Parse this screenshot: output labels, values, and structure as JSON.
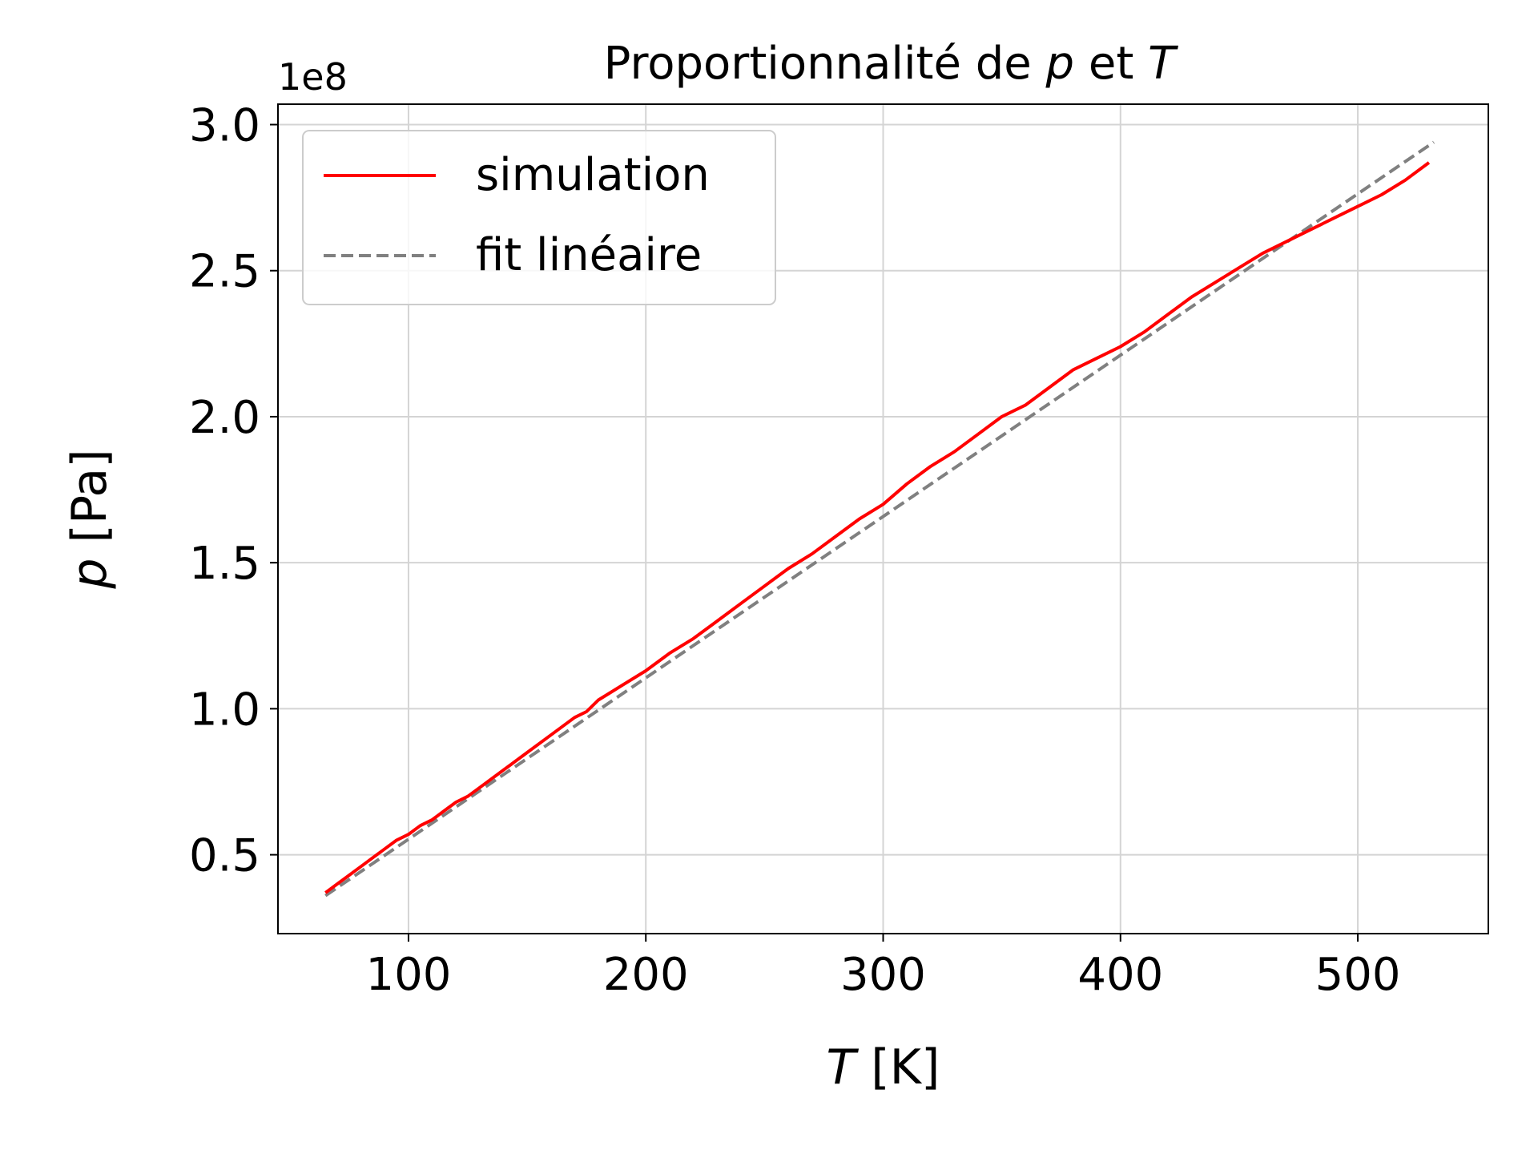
{
  "chart_data": {
    "type": "line",
    "title_parts": [
      {
        "text": "Proportionnalité de ",
        "italic": false
      },
      {
        "text": "p",
        "italic": true
      },
      {
        "text": " et ",
        "italic": false
      },
      {
        "text": "T",
        "italic": true
      }
    ],
    "xlabel_parts": [
      {
        "text": "T",
        "italic": true
      },
      {
        "text": " [K]",
        "italic": false
      }
    ],
    "ylabel_parts": [
      {
        "text": "p",
        "italic": true
      },
      {
        "text": " [Pa]",
        "italic": false
      }
    ],
    "y_offset_text": "1e8",
    "xlim": [
      45,
      555
    ],
    "ylim": [
      0.23,
      3.07
    ],
    "y_scale_exponent": 8,
    "xticks": [
      100,
      200,
      300,
      400,
      500
    ],
    "xtick_labels": [
      "100",
      "200",
      "300",
      "400",
      "500"
    ],
    "yticks": [
      0.5,
      1.0,
      1.5,
      2.0,
      2.5,
      3.0
    ],
    "ytick_labels": [
      "0.5",
      "1.0",
      "1.5",
      "2.0",
      "2.5",
      "3.0"
    ],
    "grid": true,
    "legend_position": "top-left",
    "series": [
      {
        "name": "simulation",
        "color": "#ff0000",
        "style": "solid",
        "x": [
          65,
          70,
          75,
          80,
          85,
          90,
          95,
          100,
          105,
          110,
          115,
          120,
          125,
          130,
          140,
          150,
          160,
          170,
          175,
          180,
          190,
          200,
          210,
          220,
          230,
          240,
          250,
          255,
          260,
          270,
          280,
          290,
          300,
          310,
          320,
          330,
          340,
          350,
          360,
          370,
          380,
          390,
          400,
          410,
          420,
          430,
          440,
          450,
          460,
          470,
          480,
          490,
          500,
          510,
          520,
          530
        ],
        "y": [
          0.37,
          0.4,
          0.43,
          0.46,
          0.49,
          0.52,
          0.55,
          0.57,
          0.6,
          0.62,
          0.65,
          0.68,
          0.7,
          0.73,
          0.79,
          0.85,
          0.91,
          0.97,
          0.99,
          1.03,
          1.08,
          1.13,
          1.19,
          1.24,
          1.3,
          1.36,
          1.42,
          1.45,
          1.48,
          1.53,
          1.59,
          1.65,
          1.7,
          1.77,
          1.83,
          1.88,
          1.94,
          2.0,
          2.04,
          2.1,
          2.16,
          2.2,
          2.24,
          2.29,
          2.35,
          2.41,
          2.46,
          2.51,
          2.56,
          2.6,
          2.64,
          2.68,
          2.72,
          2.76,
          2.81,
          2.87
        ]
      },
      {
        "name": "fit linéaire",
        "color": "#808080",
        "style": "dashed",
        "x": [
          65,
          532
        ],
        "y": [
          0.36,
          2.94
        ]
      }
    ]
  }
}
